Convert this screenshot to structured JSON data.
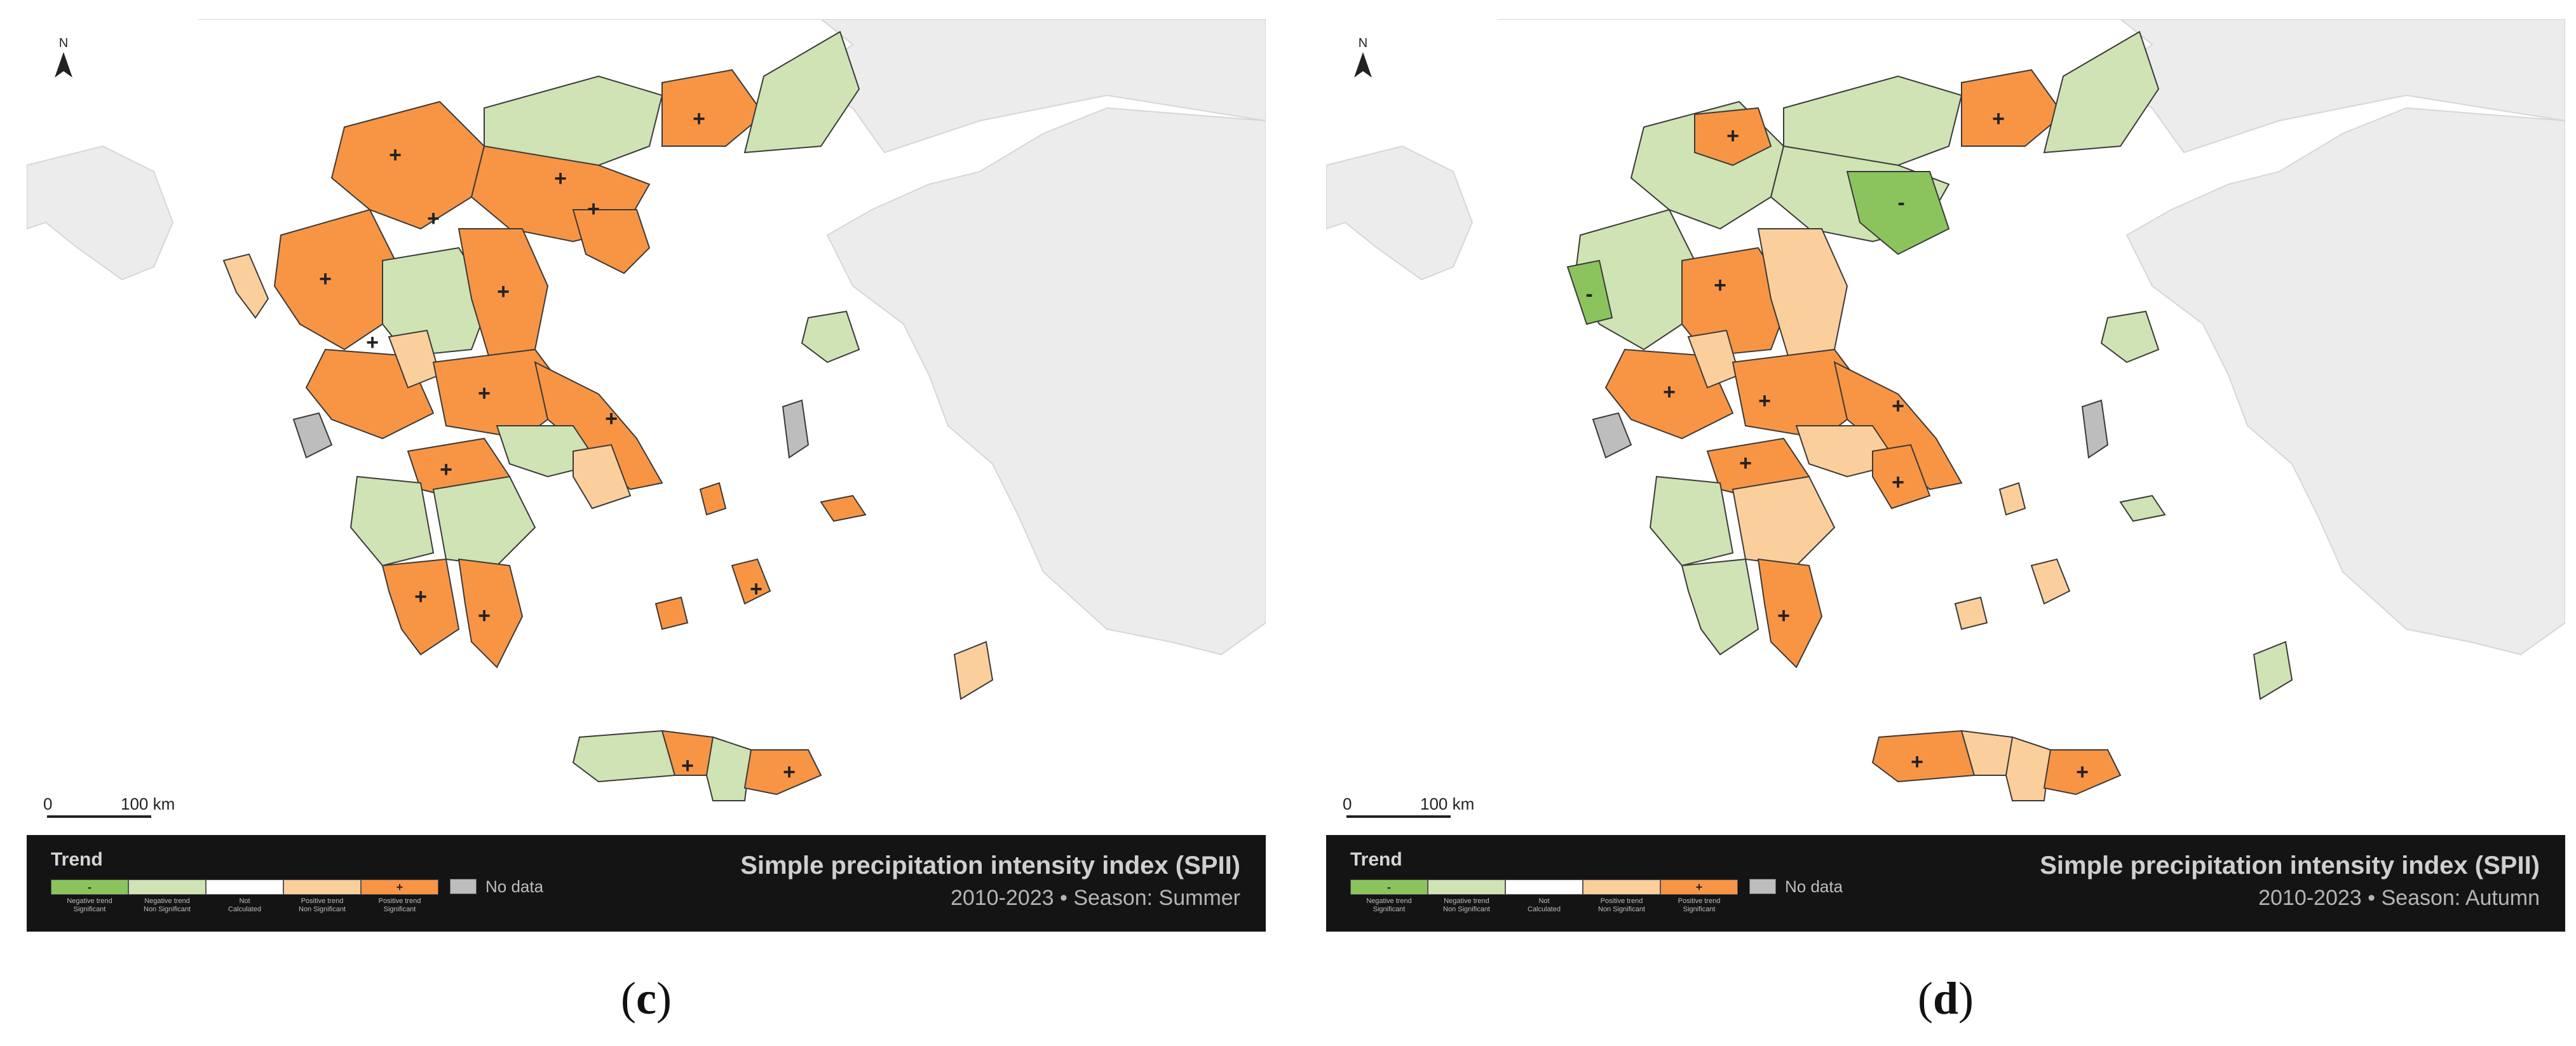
{
  "colors": {
    "sea": "#ffffff",
    "land_other": "#ececec",
    "negative_significant": "#8bc45c",
    "negative_non_significant": "#cfe3b4",
    "not_calculated": "#ffffff",
    "positive_non_significant": "#fbcf9b",
    "positive_significant": "#f79545",
    "no_data": "#bdbdbd",
    "legend_background": "#141414"
  },
  "north_arrow": {
    "label": "N"
  },
  "scale_bar": {
    "zero": "0",
    "end": "100 km"
  },
  "legend": {
    "title": "Trend",
    "items": [
      {
        "symbol": "-",
        "line1": "Negative trend",
        "line2": "Significant",
        "color": "#8bc45c"
      },
      {
        "symbol": "",
        "line1": "Negative trend",
        "line2": "Non Significant",
        "color": "#cfe3b4"
      },
      {
        "symbol": "",
        "line1": "Not",
        "line2": "Calculated",
        "color": "#ffffff"
      },
      {
        "symbol": "",
        "line1": "Positive trend",
        "line2": "Non Significant",
        "color": "#fbcf9b"
      },
      {
        "symbol": "+",
        "line1": "Positive trend",
        "line2": "Significant",
        "color": "#f79545"
      }
    ],
    "no_data_label": "No data"
  },
  "panels": [
    {
      "caption_open": "(",
      "caption_letter": "c",
      "caption_close": ")",
      "index_title": "Simple precipitation intensity index (SPII)",
      "subtitle": "2010-2023 • Season: Summer",
      "predominant_trend": "Positive trend Significant"
    },
    {
      "caption_open": "(",
      "caption_letter": "d",
      "caption_close": ")",
      "index_title": "Simple precipitation intensity index (SPII)",
      "subtitle": "2010-2023 • Season: Autumn",
      "predominant_trend": "Negative trend Non Significant"
    }
  ]
}
